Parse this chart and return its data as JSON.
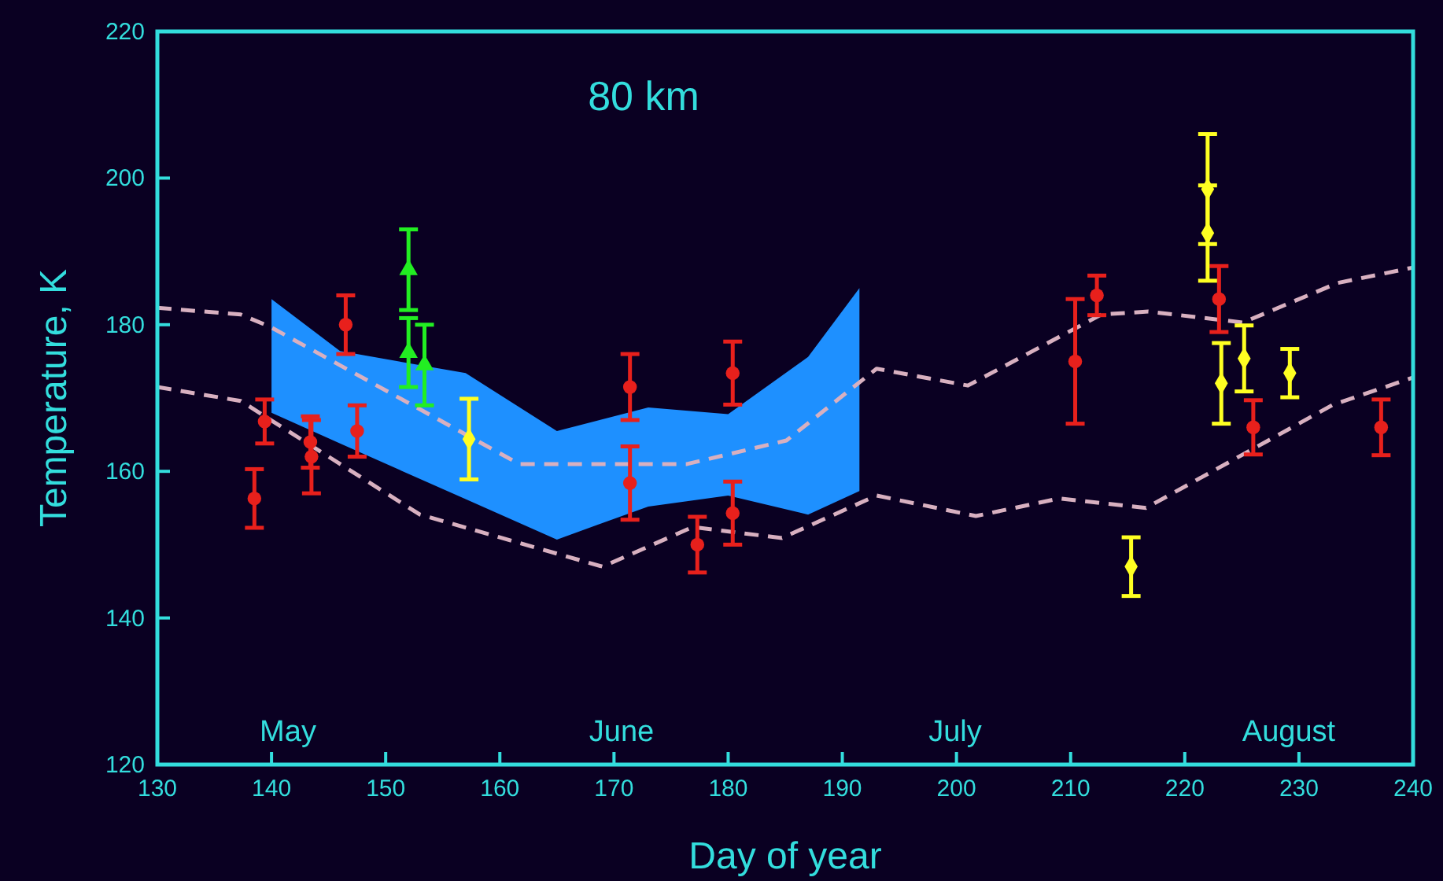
{
  "chart_data": {
    "type": "scatter",
    "title": "80 km",
    "xlabel": "Day of year",
    "ylabel": "Temperature, K",
    "xlim": [
      130,
      240
    ],
    "xticks": [
      130,
      140,
      150,
      160,
      170,
      180,
      190,
      200,
      210,
      220,
      230,
      240
    ],
    "ylim": [
      120,
      220
    ],
    "yticks": [
      120,
      140,
      160,
      180,
      200,
      220
    ],
    "annotations": [
      "May",
      "June",
      "July",
      "August"
    ],
    "series": [
      {
        "type": "line",
        "color": "#1e90ff",
        "x": [
          140,
          146,
          157,
          165,
          173,
          180,
          187,
          191.5
        ],
        "values": [
          null,
          null,
          null,
          null,
          null,
          null,
          null,
          null
        ],
        "upper": [
          183.5,
          176.4,
          173.4,
          165.5,
          168.7,
          167.8,
          175.6,
          185
        ],
        "lower": [
          168,
          163.8,
          156.2,
          150.7,
          155.2,
          156.7,
          154.1,
          157.3
        ]
      },
      {
        "type": "line",
        "color": "#d8b0c0",
        "line_style": "dashed",
        "marker": "none",
        "x": [
          130,
          137.3,
          139.9,
          161.7,
          176.4,
          185.1,
          193,
          201,
          212.7,
          216.8,
          225.1,
          233.4,
          240
        ],
        "values": [
          182.3,
          181.4,
          179.7,
          161,
          161,
          164.2,
          174,
          171.7,
          181.4,
          181.8,
          180.3,
          185.7,
          187.8
        ]
      },
      {
        "type": "line",
        "color": "#d8b0c0",
        "line_style": "dashed",
        "marker": "none",
        "x": [
          130,
          137.3,
          153,
          169,
          176.9,
          184.7,
          193,
          201.7,
          209,
          216.6,
          233,
          240
        ],
        "values": [
          171.5,
          169.6,
          154.1,
          147,
          152.4,
          150.9,
          156.7,
          153.9,
          156.3,
          155,
          169.1,
          172.8
        ]
      },
      {
        "type": "scatter",
        "color": "#e8201c",
        "marker": "circle",
        "x": [
          138.5,
          139.4,
          143.4,
          143.5,
          146.5,
          147.5,
          171.4,
          171.4,
          177.3,
          180.4,
          180.4,
          210.4,
          212.3,
          223,
          226,
          237.2
        ],
        "values": [
          156.3,
          166.8,
          164,
          162,
          180,
          165.5,
          171.5,
          158.4,
          150,
          173.4,
          154.3,
          175,
          184,
          183.5,
          166,
          166
        ],
        "errors": [
          4,
          3,
          3.5,
          5,
          4,
          3.5,
          4.5,
          5,
          3.8,
          4.3,
          4.3,
          8.5,
          2.7,
          4.5,
          3.7,
          3.8
        ]
      },
      {
        "type": "scatter",
        "color": "#22ee22",
        "marker": "triangle",
        "x": [
          152,
          152,
          153.4
        ],
        "values": [
          187.5,
          176.2,
          174.5
        ],
        "errors": [
          5.5,
          4.7,
          5.5
        ]
      },
      {
        "type": "scatter",
        "color": "#ffff22",
        "marker": "diamond",
        "x": [
          157.3,
          222,
          222,
          223.2,
          225.2,
          229.2,
          215.3
        ],
        "values": [
          164.4,
          198.5,
          192.5,
          172,
          175.4,
          173.4,
          147
        ],
        "errors": [
          5.5,
          7.5,
          6.5,
          5.5,
          4.5,
          3.3,
          4
        ]
      }
    ]
  }
}
